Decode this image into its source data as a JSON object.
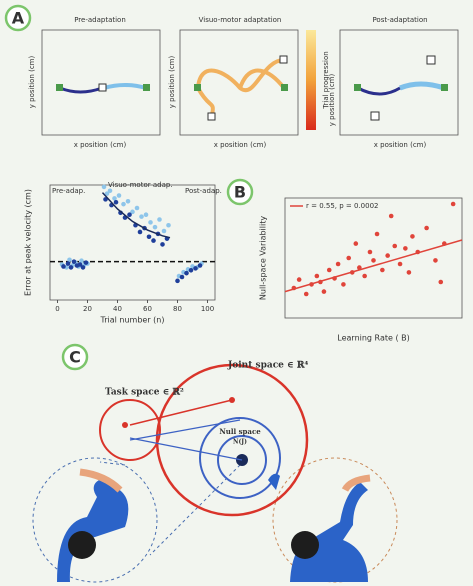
{
  "figure": {
    "panel_labels": [
      "A",
      "B",
      "C"
    ],
    "panel_a": {
      "titles": [
        "Pre-adaptation",
        "Visuo-motor adaptation",
        "Post-adaptation"
      ],
      "x_label": "x position (cm)",
      "y_label": "y position (cm)",
      "colorbar_label": "Trial progression"
    },
    "panel_c": {
      "task_space": "Task space ∈ ℝ²",
      "joint_space": "Joint space ∈ ℝ⁴",
      "null_space": "Null space",
      "null_sub": "N(J)"
    }
  },
  "chart_data": [
    {
      "type": "scatter",
      "x_label": "Trial number (n)",
      "y_label": "Error at peak velocity (cm)",
      "annotations": [
        "Pre-adap.",
        "Visuo-motor adap.",
        "Post-adap."
      ],
      "xlim": [
        -5,
        105
      ],
      "ylim": [
        -4,
        8
      ],
      "xticks": [
        0,
        20,
        40,
        60,
        80,
        100
      ],
      "series": [
        {
          "color": "#8ec5ea",
          "x": [
            3,
            6,
            8,
            10,
            12,
            14,
            16,
            18,
            20,
            31,
            33,
            35,
            38,
            41,
            44,
            47,
            50,
            53,
            56,
            59,
            62,
            65,
            68,
            71,
            74,
            81,
            84,
            87,
            90,
            93,
            96
          ],
          "y": [
            -0.3,
            -0.6,
            0.2,
            -0.4,
            -0.1,
            -0.5,
            0.1,
            -0.3,
            -0.2,
            7.8,
            7.1,
            7.4,
            6.6,
            6.9,
            6.0,
            6.3,
            5.2,
            5.6,
            4.7,
            4.9,
            4.1,
            3.6,
            4.4,
            3.2,
            3.8,
            -1.5,
            -1.1,
            -0.8,
            -0.5,
            -0.6,
            -0.2
          ]
        },
        {
          "color": "#1f3f9a",
          "x": [
            4,
            7,
            9,
            11,
            13,
            15,
            17,
            19,
            32,
            36,
            39,
            42,
            45,
            48,
            52,
            55,
            58,
            61,
            64,
            67,
            70,
            73,
            80,
            83,
            86,
            89,
            92,
            95
          ],
          "y": [
            -0.5,
            -0.2,
            -0.6,
            0.0,
            -0.4,
            -0.3,
            -0.6,
            -0.1,
            6.5,
            5.9,
            6.2,
            5.1,
            4.6,
            4.9,
            3.8,
            3.1,
            3.5,
            2.6,
            2.2,
            2.9,
            1.8,
            2.4,
            -2.0,
            -1.6,
            -1.2,
            -0.9,
            -0.7,
            -0.4
          ]
        }
      ],
      "fit": {
        "color": "#1a2a5a",
        "x": [
          30,
          40,
          50,
          60,
          70,
          75
        ],
        "y": [
          7.2,
          5.5,
          4.2,
          3.3,
          2.7,
          2.5
        ]
      }
    },
    {
      "type": "scatter",
      "title": "r = 0.55, p = 0.0002",
      "x_label": "Learning Rate ( B)",
      "y_label": "Null-space Variability",
      "xlim": [
        0,
        1
      ],
      "ylim": [
        0,
        1
      ],
      "color": "#e0443a",
      "x": [
        0.05,
        0.08,
        0.12,
        0.15,
        0.18,
        0.2,
        0.22,
        0.25,
        0.28,
        0.3,
        0.33,
        0.36,
        0.38,
        0.4,
        0.42,
        0.45,
        0.48,
        0.5,
        0.52,
        0.55,
        0.58,
        0.6,
        0.62,
        0.65,
        0.68,
        0.7,
        0.72,
        0.75,
        0.8,
        0.85,
        0.88,
        0.9,
        0.95
      ],
      "y": [
        0.25,
        0.32,
        0.2,
        0.28,
        0.35,
        0.3,
        0.22,
        0.4,
        0.33,
        0.45,
        0.28,
        0.5,
        0.38,
        0.62,
        0.42,
        0.35,
        0.55,
        0.48,
        0.7,
        0.4,
        0.52,
        0.85,
        0.6,
        0.45,
        0.58,
        0.38,
        0.68,
        0.55,
        0.75,
        0.48,
        0.3,
        0.62,
        0.95
      ],
      "fit": {
        "color": "#e0443a",
        "x": [
          0,
          1
        ],
        "y": [
          0.22,
          0.65
        ]
      }
    }
  ]
}
